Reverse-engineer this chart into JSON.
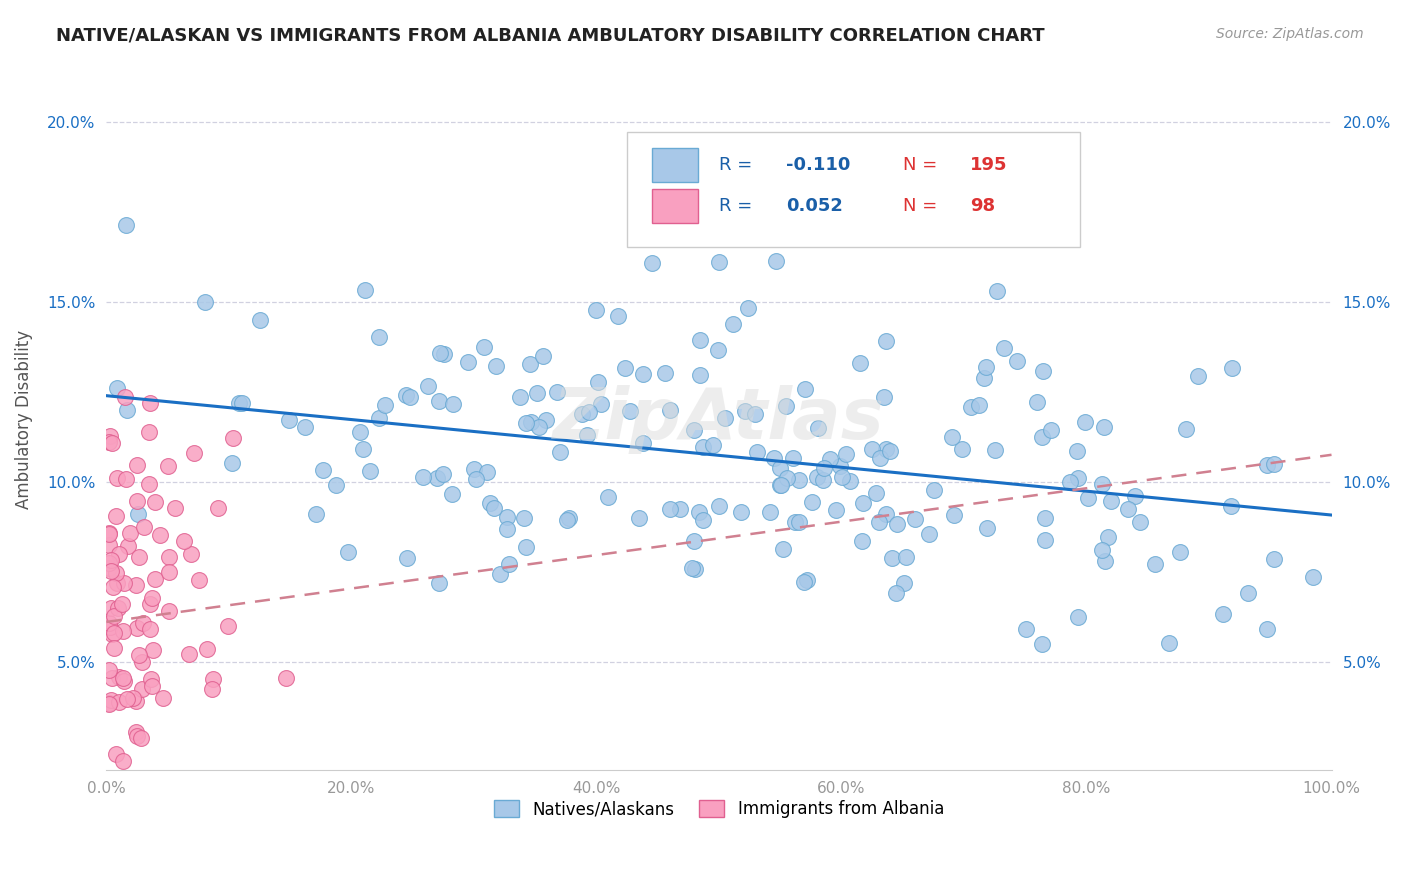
{
  "title": "NATIVE/ALASKAN VS IMMIGRANTS FROM ALBANIA AMBULATORY DISABILITY CORRELATION CHART",
  "source_text": "Source: ZipAtlas.com",
  "ylabel": "Ambulatory Disability",
  "xlim": [
    0,
    1.0
  ],
  "ylim": [
    0.02,
    0.215
  ],
  "xticks": [
    0.0,
    0.2,
    0.4,
    0.6,
    0.8,
    1.0
  ],
  "yticks": [
    0.05,
    0.1,
    0.15,
    0.2
  ],
  "xticklabels": [
    "0.0%",
    "20.0%",
    "40.0%",
    "60.0%",
    "80.0%",
    "100.0%"
  ],
  "yticklabels": [
    "5.0%",
    "10.0%",
    "15.0%",
    "20.0%"
  ],
  "blue_color": "#a8c8e8",
  "blue_edge_color": "#6aaad4",
  "pink_color": "#f9a0c0",
  "pink_edge_color": "#e06090",
  "blue_line_color": "#1a6fc4",
  "pink_line_color": "#d08090",
  "r1": -0.11,
  "r2": 0.052,
  "n1": 195,
  "n2": 98,
  "background_color": "#ffffff",
  "grid_color": "#ccccdd",
  "title_color": "#222222",
  "axis_label_color": "#555555",
  "tick_label_color": "#999999",
  "legend_r_color": "#1a5fa8",
  "legend_n_color": "#dd3333",
  "watermark_color": "#dddddd"
}
